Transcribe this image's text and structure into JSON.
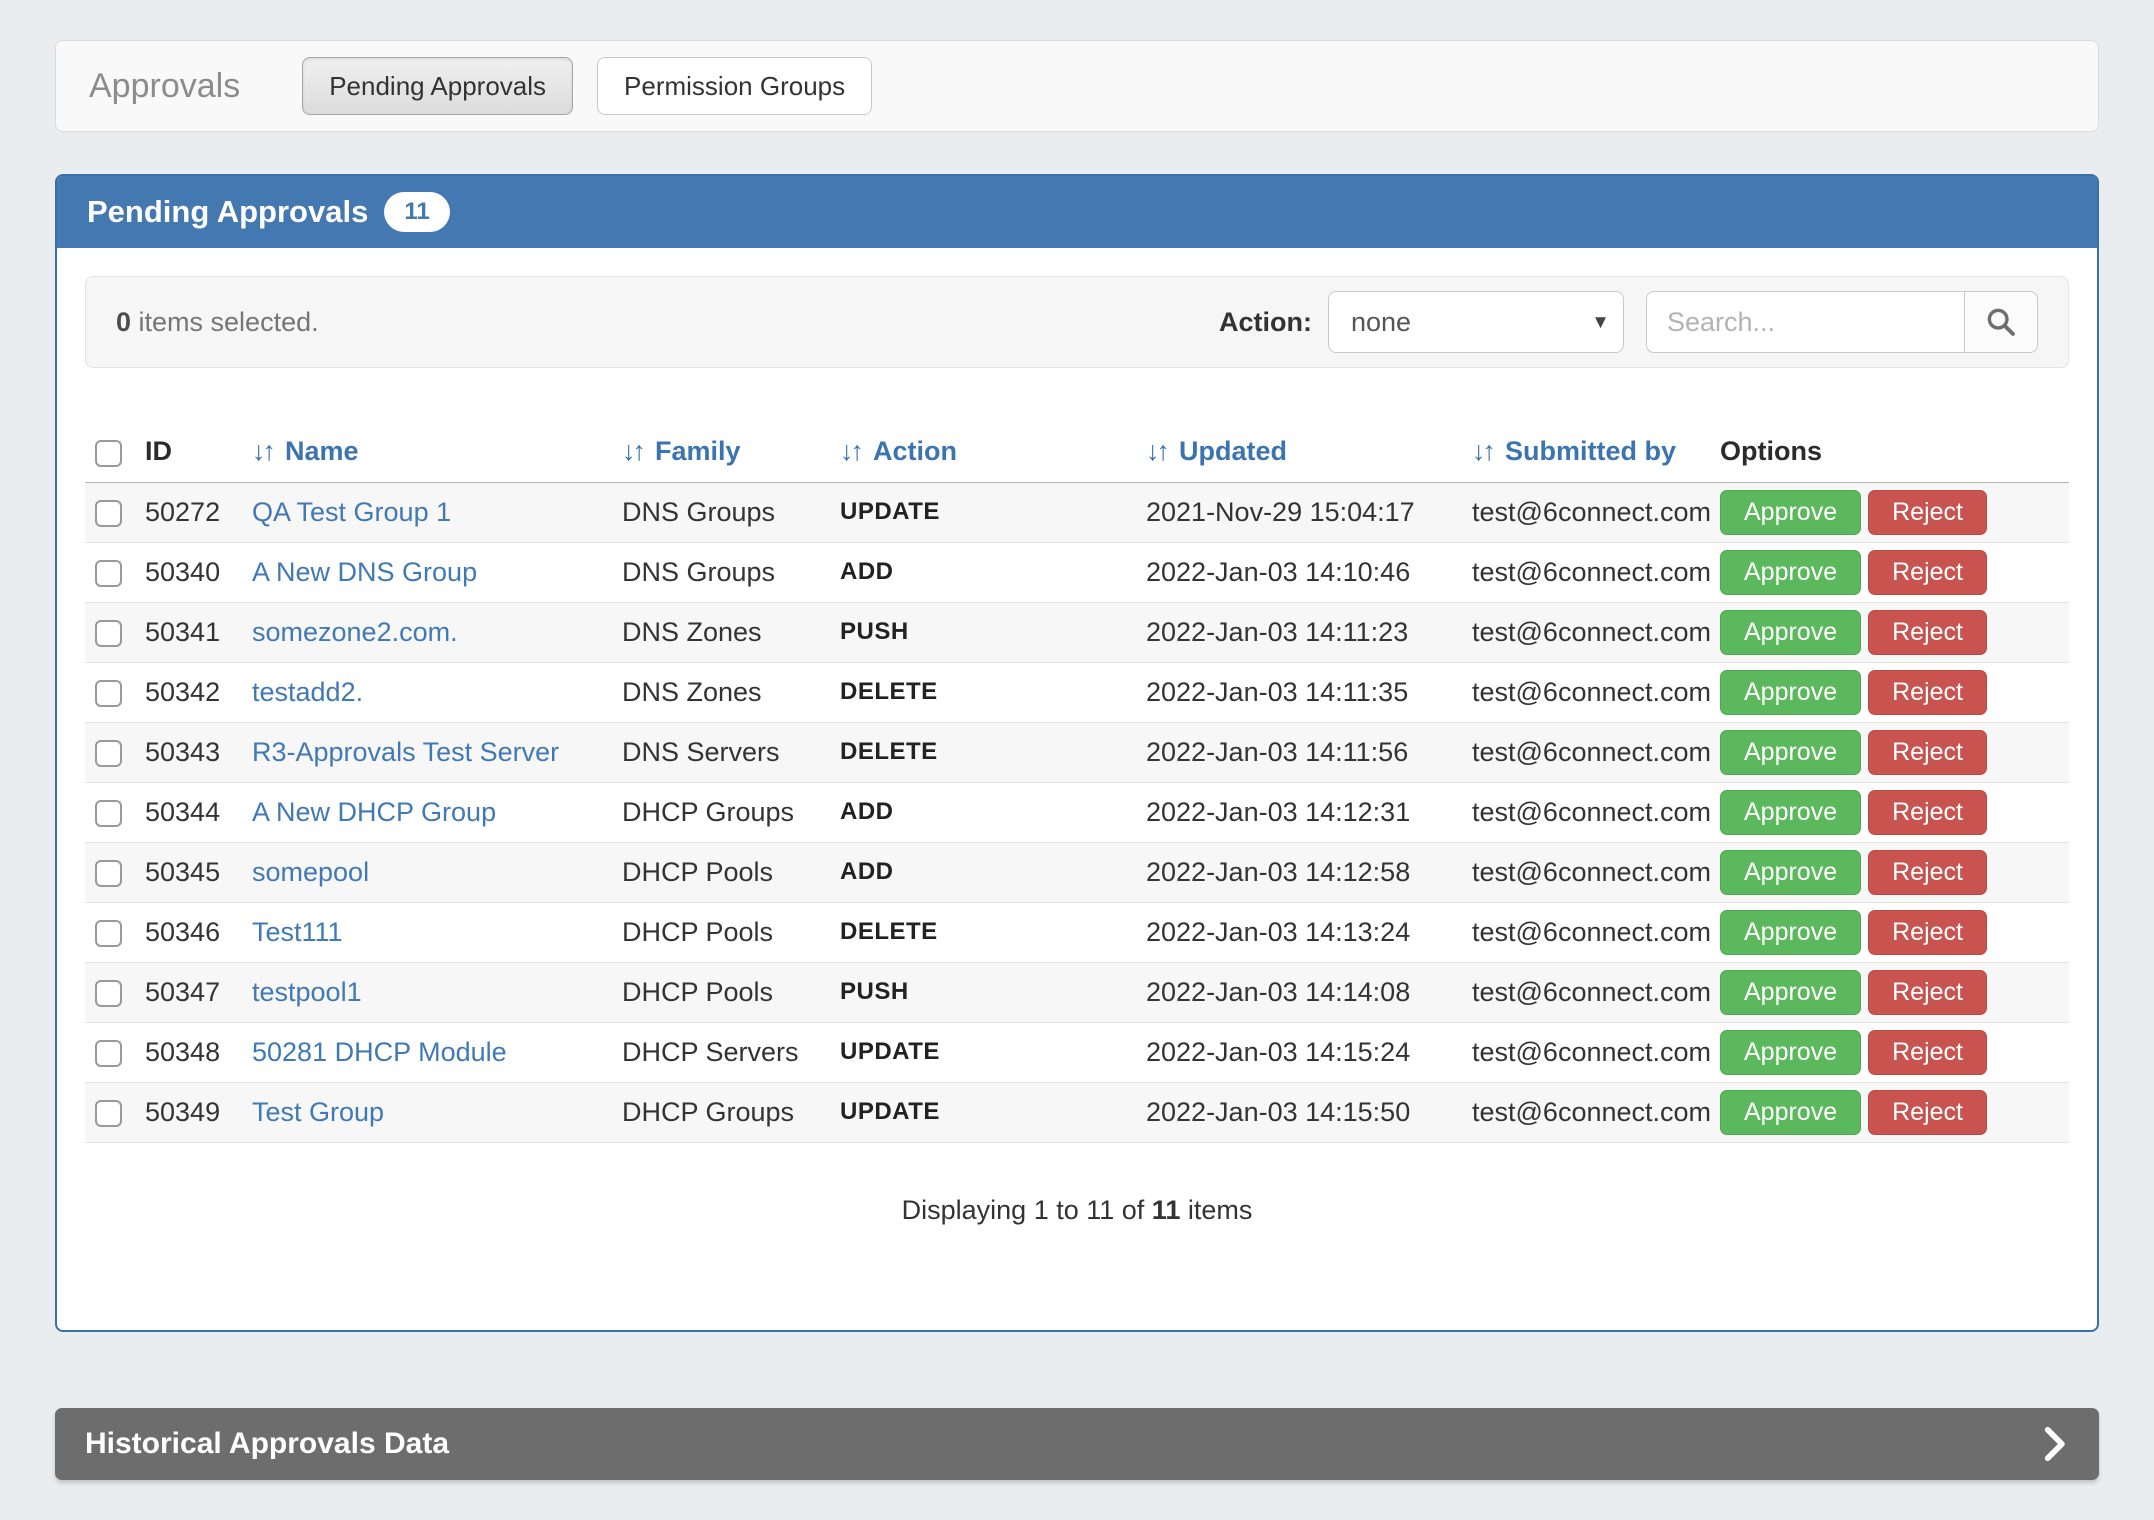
{
  "header": {
    "title": "Approvals",
    "tabs": [
      {
        "label": "Pending Approvals",
        "active": true
      },
      {
        "label": "Permission Groups",
        "active": false
      }
    ]
  },
  "panel": {
    "title": "Pending Approvals",
    "badge": "11",
    "toolbar": {
      "selected_count": "0",
      "selected_text": " items selected.",
      "action_label": "Action:",
      "action_value": "none",
      "search_placeholder": "Search..."
    },
    "table": {
      "columns": [
        {
          "label": "ID",
          "sortable": false
        },
        {
          "label": "Name",
          "sortable": true
        },
        {
          "label": "Family",
          "sortable": true
        },
        {
          "label": "Action",
          "sortable": true
        },
        {
          "label": "Updated",
          "sortable": true
        },
        {
          "label": "Submitted by",
          "sortable": true
        },
        {
          "label": "Options",
          "sortable": false
        }
      ],
      "approve_label": "Approve",
      "reject_label": "Reject",
      "rows": [
        {
          "id": "50272",
          "name": "QA Test Group 1",
          "family": "DNS Groups",
          "action": "UPDATE",
          "updated": "2021-Nov-29 15:04:17",
          "submitted_by": "test@6connect.com"
        },
        {
          "id": "50340",
          "name": "A New DNS Group",
          "family": "DNS Groups",
          "action": "ADD",
          "updated": "2022-Jan-03 14:10:46",
          "submitted_by": "test@6connect.com"
        },
        {
          "id": "50341",
          "name": "somezone2.com.",
          "family": "DNS Zones",
          "action": "PUSH",
          "updated": "2022-Jan-03 14:11:23",
          "submitted_by": "test@6connect.com"
        },
        {
          "id": "50342",
          "name": "testadd2.",
          "family": "DNS Zones",
          "action": "DELETE",
          "updated": "2022-Jan-03 14:11:35",
          "submitted_by": "test@6connect.com"
        },
        {
          "id": "50343",
          "name": "R3-Approvals Test Server",
          "family": "DNS Servers",
          "action": "DELETE",
          "updated": "2022-Jan-03 14:11:56",
          "submitted_by": "test@6connect.com"
        },
        {
          "id": "50344",
          "name": "A New DHCP Group",
          "family": "DHCP Groups",
          "action": "ADD",
          "updated": "2022-Jan-03 14:12:31",
          "submitted_by": "test@6connect.com"
        },
        {
          "id": "50345",
          "name": "somepool",
          "family": "DHCP Pools",
          "action": "ADD",
          "updated": "2022-Jan-03 14:12:58",
          "submitted_by": "test@6connect.com"
        },
        {
          "id": "50346",
          "name": "Test111",
          "family": "DHCP Pools",
          "action": "DELETE",
          "updated": "2022-Jan-03 14:13:24",
          "submitted_by": "test@6connect.com"
        },
        {
          "id": "50347",
          "name": "testpool1",
          "family": "DHCP Pools",
          "action": "PUSH",
          "updated": "2022-Jan-03 14:14:08",
          "submitted_by": "test@6connect.com"
        },
        {
          "id": "50348",
          "name": "50281 DHCP Module",
          "family": "DHCP Servers",
          "action": "UPDATE",
          "updated": "2022-Jan-03 14:15:24",
          "submitted_by": "test@6connect.com"
        },
        {
          "id": "50349",
          "name": "Test Group",
          "family": "DHCP Groups",
          "action": "UPDATE",
          "updated": "2022-Jan-03 14:15:50",
          "submitted_by": "test@6connect.com"
        }
      ]
    },
    "footer": {
      "prefix": "Displaying 1 to 11 of ",
      "total": "11",
      "suffix": " items"
    }
  },
  "historical": {
    "label": "Historical Approvals Data"
  },
  "icons": {
    "caret": "▾",
    "sort": "↓↑"
  },
  "colors": {
    "header_blue": "#4478b1",
    "link_blue": "#4179b5",
    "approve_green": "#5cb85c",
    "reject_red": "#c9534f",
    "historical_gray": "#6d6d6d",
    "page_background": "#e9edf0"
  }
}
